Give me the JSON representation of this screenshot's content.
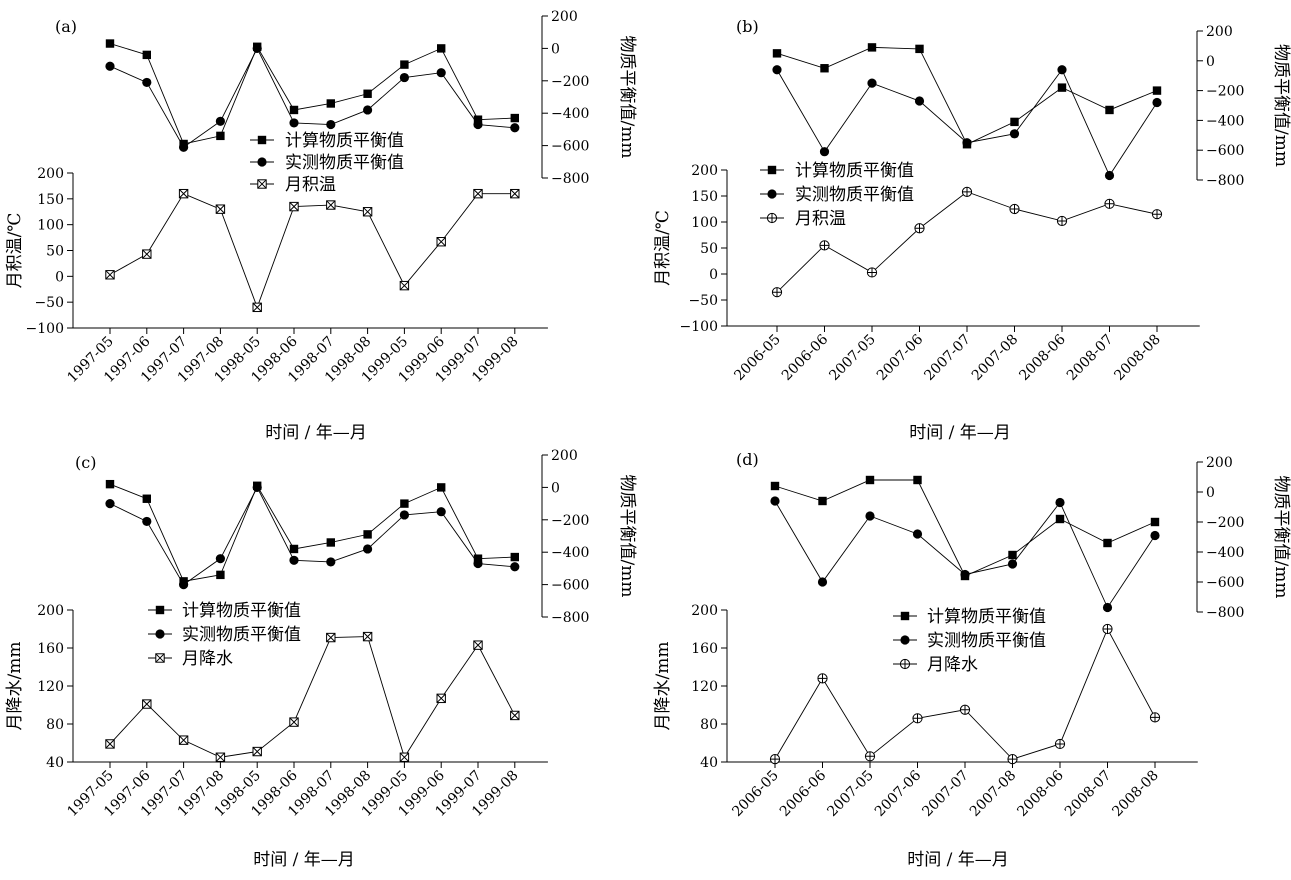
{
  "chart_data": [
    {
      "type": "line",
      "panel_label": "(a)",
      "categories": [
        "1997-05",
        "1997-06",
        "1997-07",
        "1997-08",
        "1998-05",
        "1998-06",
        "1998-07",
        "1998-08",
        "1999-05",
        "1999-06",
        "1999-07",
        "1999-08"
      ],
      "xlabel": "时间 / 年—月",
      "top_axis": {
        "label": "物质平衡值/mm",
        "ticks": [
          "200",
          "0",
          "−200",
          "−400",
          "−600",
          "−800"
        ],
        "ylim": [
          -800,
          200
        ]
      },
      "bottom_axis": {
        "label": "月积温/℃",
        "ticks": [
          "200",
          "150",
          "100",
          "50",
          "0",
          "−50",
          "−100"
        ],
        "ylim": [
          -100,
          200
        ]
      },
      "legend": [
        "计算物质平衡值",
        "实测物质平衡值",
        "月积温"
      ],
      "series": [
        {
          "name": "计算物质平衡值",
          "axis": "top",
          "marker": "square",
          "values": [
            30,
            -40,
            -590,
            -540,
            10,
            -380,
            -340,
            -280,
            -100,
            0,
            -440,
            -430
          ]
        },
        {
          "name": "实测物质平衡值",
          "axis": "top",
          "marker": "circle",
          "values": [
            -110,
            -210,
            -610,
            -450,
            0,
            -460,
            -470,
            -380,
            -180,
            -150,
            -470,
            -490
          ]
        },
        {
          "name": "月积温",
          "axis": "bottom",
          "marker": "xbox",
          "values": [
            3,
            43,
            160,
            130,
            -60,
            135,
            138,
            125,
            -18,
            67,
            160,
            160
          ]
        }
      ]
    },
    {
      "type": "line",
      "panel_label": "(b)",
      "categories": [
        "2006-05",
        "2006-06",
        "2007-05",
        "2007-06",
        "2007-07",
        "2007-08",
        "2008-06",
        "2008-07",
        "2008-08"
      ],
      "xlabel": "时间 / 年—月",
      "top_axis": {
        "label": "物质平衡值/mm",
        "ticks": [
          "200",
          "0",
          "−200",
          "−400",
          "−600",
          "−800"
        ],
        "ylim": [
          -800,
          200
        ]
      },
      "bottom_axis": {
        "label": "月积温/℃",
        "ticks": [
          "200",
          "150",
          "100",
          "50",
          "0",
          "−50",
          "−100"
        ],
        "ylim": [
          -100,
          200
        ]
      },
      "legend": [
        "计算物质平衡值",
        "实测物质平衡值",
        "月积温"
      ],
      "series": [
        {
          "name": "计算物质平衡值",
          "axis": "top",
          "marker": "square",
          "values": [
            50,
            -50,
            90,
            80,
            -560,
            -410,
            -180,
            -330,
            -200
          ]
        },
        {
          "name": "实测物质平衡值",
          "axis": "top",
          "marker": "circle",
          "values": [
            -60,
            -610,
            -150,
            -270,
            -550,
            -490,
            -60,
            -770,
            -280
          ]
        },
        {
          "name": "月积温",
          "axis": "bottom",
          "marker": "circleplus",
          "values": [
            -35,
            55,
            3,
            88,
            158,
            125,
            102,
            135,
            115
          ]
        }
      ]
    },
    {
      "type": "line",
      "panel_label": "(c)",
      "categories": [
        "1997-05",
        "1997-06",
        "1997-07",
        "1997-08",
        "1998-05",
        "1998-06",
        "1998-07",
        "1998-08",
        "1999-05",
        "1999-06",
        "1999-07",
        "1999-08"
      ],
      "xlabel": "时间 / 年—月",
      "top_axis": {
        "label": "物质平衡值/mm",
        "ticks": [
          "200",
          "0",
          "−200",
          "−400",
          "−600",
          "−800"
        ],
        "ylim": [
          -800,
          200
        ]
      },
      "bottom_axis": {
        "label": "月降水/mm",
        "ticks": [
          "200",
          "160",
          "120",
          "80",
          "40"
        ],
        "ylim": [
          40,
          200
        ]
      },
      "legend": [
        "计算物质平衡值",
        "实测物质平衡值",
        "月降水"
      ],
      "series": [
        {
          "name": "计算物质平衡值",
          "axis": "top",
          "marker": "square",
          "values": [
            20,
            -70,
            -580,
            -540,
            10,
            -380,
            -340,
            -290,
            -100,
            0,
            -440,
            -430
          ]
        },
        {
          "name": "实测物质平衡值",
          "axis": "top",
          "marker": "circle",
          "values": [
            -100,
            -210,
            -600,
            -440,
            0,
            -450,
            -460,
            -380,
            -170,
            -150,
            -470,
            -490
          ]
        },
        {
          "name": "月降水",
          "axis": "bottom",
          "marker": "xbox",
          "values": [
            59,
            101,
            63,
            45,
            51,
            82,
            171,
            172,
            45,
            107,
            163,
            89
          ]
        }
      ]
    },
    {
      "type": "line",
      "panel_label": "(d)",
      "categories": [
        "2006-05",
        "2006-06",
        "2007-05",
        "2007-06",
        "2007-07",
        "2007-08",
        "2008-06",
        "2008-07",
        "2008-08"
      ],
      "xlabel": "时间 / 年—月",
      "top_axis": {
        "label": "物质平衡值/mm",
        "ticks": [
          "200",
          "0",
          "−200",
          "−400",
          "−600",
          "−800"
        ],
        "ylim": [
          -800,
          200
        ]
      },
      "bottom_axis": {
        "label": "月降水/mm",
        "ticks": [
          "200",
          "160",
          "120",
          "80",
          "40"
        ],
        "ylim": [
          40,
          200
        ]
      },
      "legend": [
        "计算物质平衡值",
        "实测物质平衡值",
        "月降水"
      ],
      "series": [
        {
          "name": "计算物质平衡值",
          "axis": "top",
          "marker": "square",
          "values": [
            40,
            -60,
            80,
            80,
            -560,
            -420,
            -180,
            -340,
            -200
          ]
        },
        {
          "name": "实测物质平衡值",
          "axis": "top",
          "marker": "circle",
          "values": [
            -60,
            -600,
            -160,
            -280,
            -550,
            -480,
            -70,
            -770,
            -290
          ]
        },
        {
          "name": "月降水",
          "axis": "bottom",
          "marker": "circleplus",
          "values": [
            43,
            128,
            46,
            86,
            95,
            43,
            59,
            180,
            87
          ]
        }
      ]
    }
  ]
}
